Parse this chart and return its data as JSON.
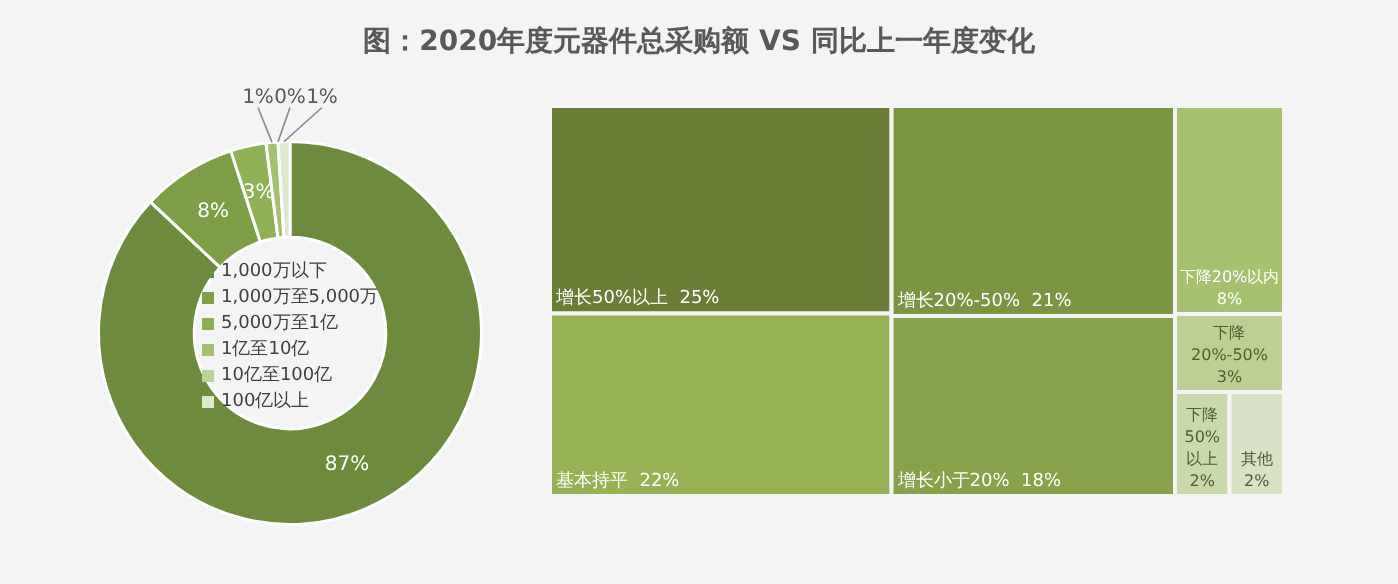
{
  "chart_data": [
    {
      "type": "donut",
      "title": "图：2020年度元器件总采购额 VS 同比上一年度变化",
      "categories": [
        "1,000万以下",
        "1,000万至5,000万",
        "5,000万至1亿",
        "1亿至10亿",
        "10亿至100亿",
        "100亿以上"
      ],
      "values": [
        87,
        8,
        3,
        1,
        0,
        1
      ],
      "value_labels": [
        "87%",
        "8%",
        "3%",
        "1%",
        "0%",
        "1%"
      ],
      "colors": [
        "#6e8b3d",
        "#7f9e48",
        "#8fb055",
        "#a4c070",
        "#bed497",
        "#dde8cc"
      ],
      "legend": "center"
    },
    {
      "type": "other",
      "categories": [
        "增长50%以上",
        "基本持平",
        "增长20%-50%",
        "增长小于20%",
        "下降20%以内",
        "下降20%-50%",
        "下降50%以上",
        "其他"
      ],
      "values": [
        25,
        22,
        21,
        18,
        8,
        3,
        2,
        2
      ],
      "value_labels": [
        "25%",
        "22%",
        "21%",
        "18%",
        "8%",
        "3%",
        "2%",
        "2%"
      ],
      "colors": [
        "#6a7e38",
        "#97b255",
        "#7b9542",
        "#88a14b",
        "#a6c170",
        "#bccf95",
        "#c9d9aa",
        "#d8e2c5"
      ]
    }
  ]
}
